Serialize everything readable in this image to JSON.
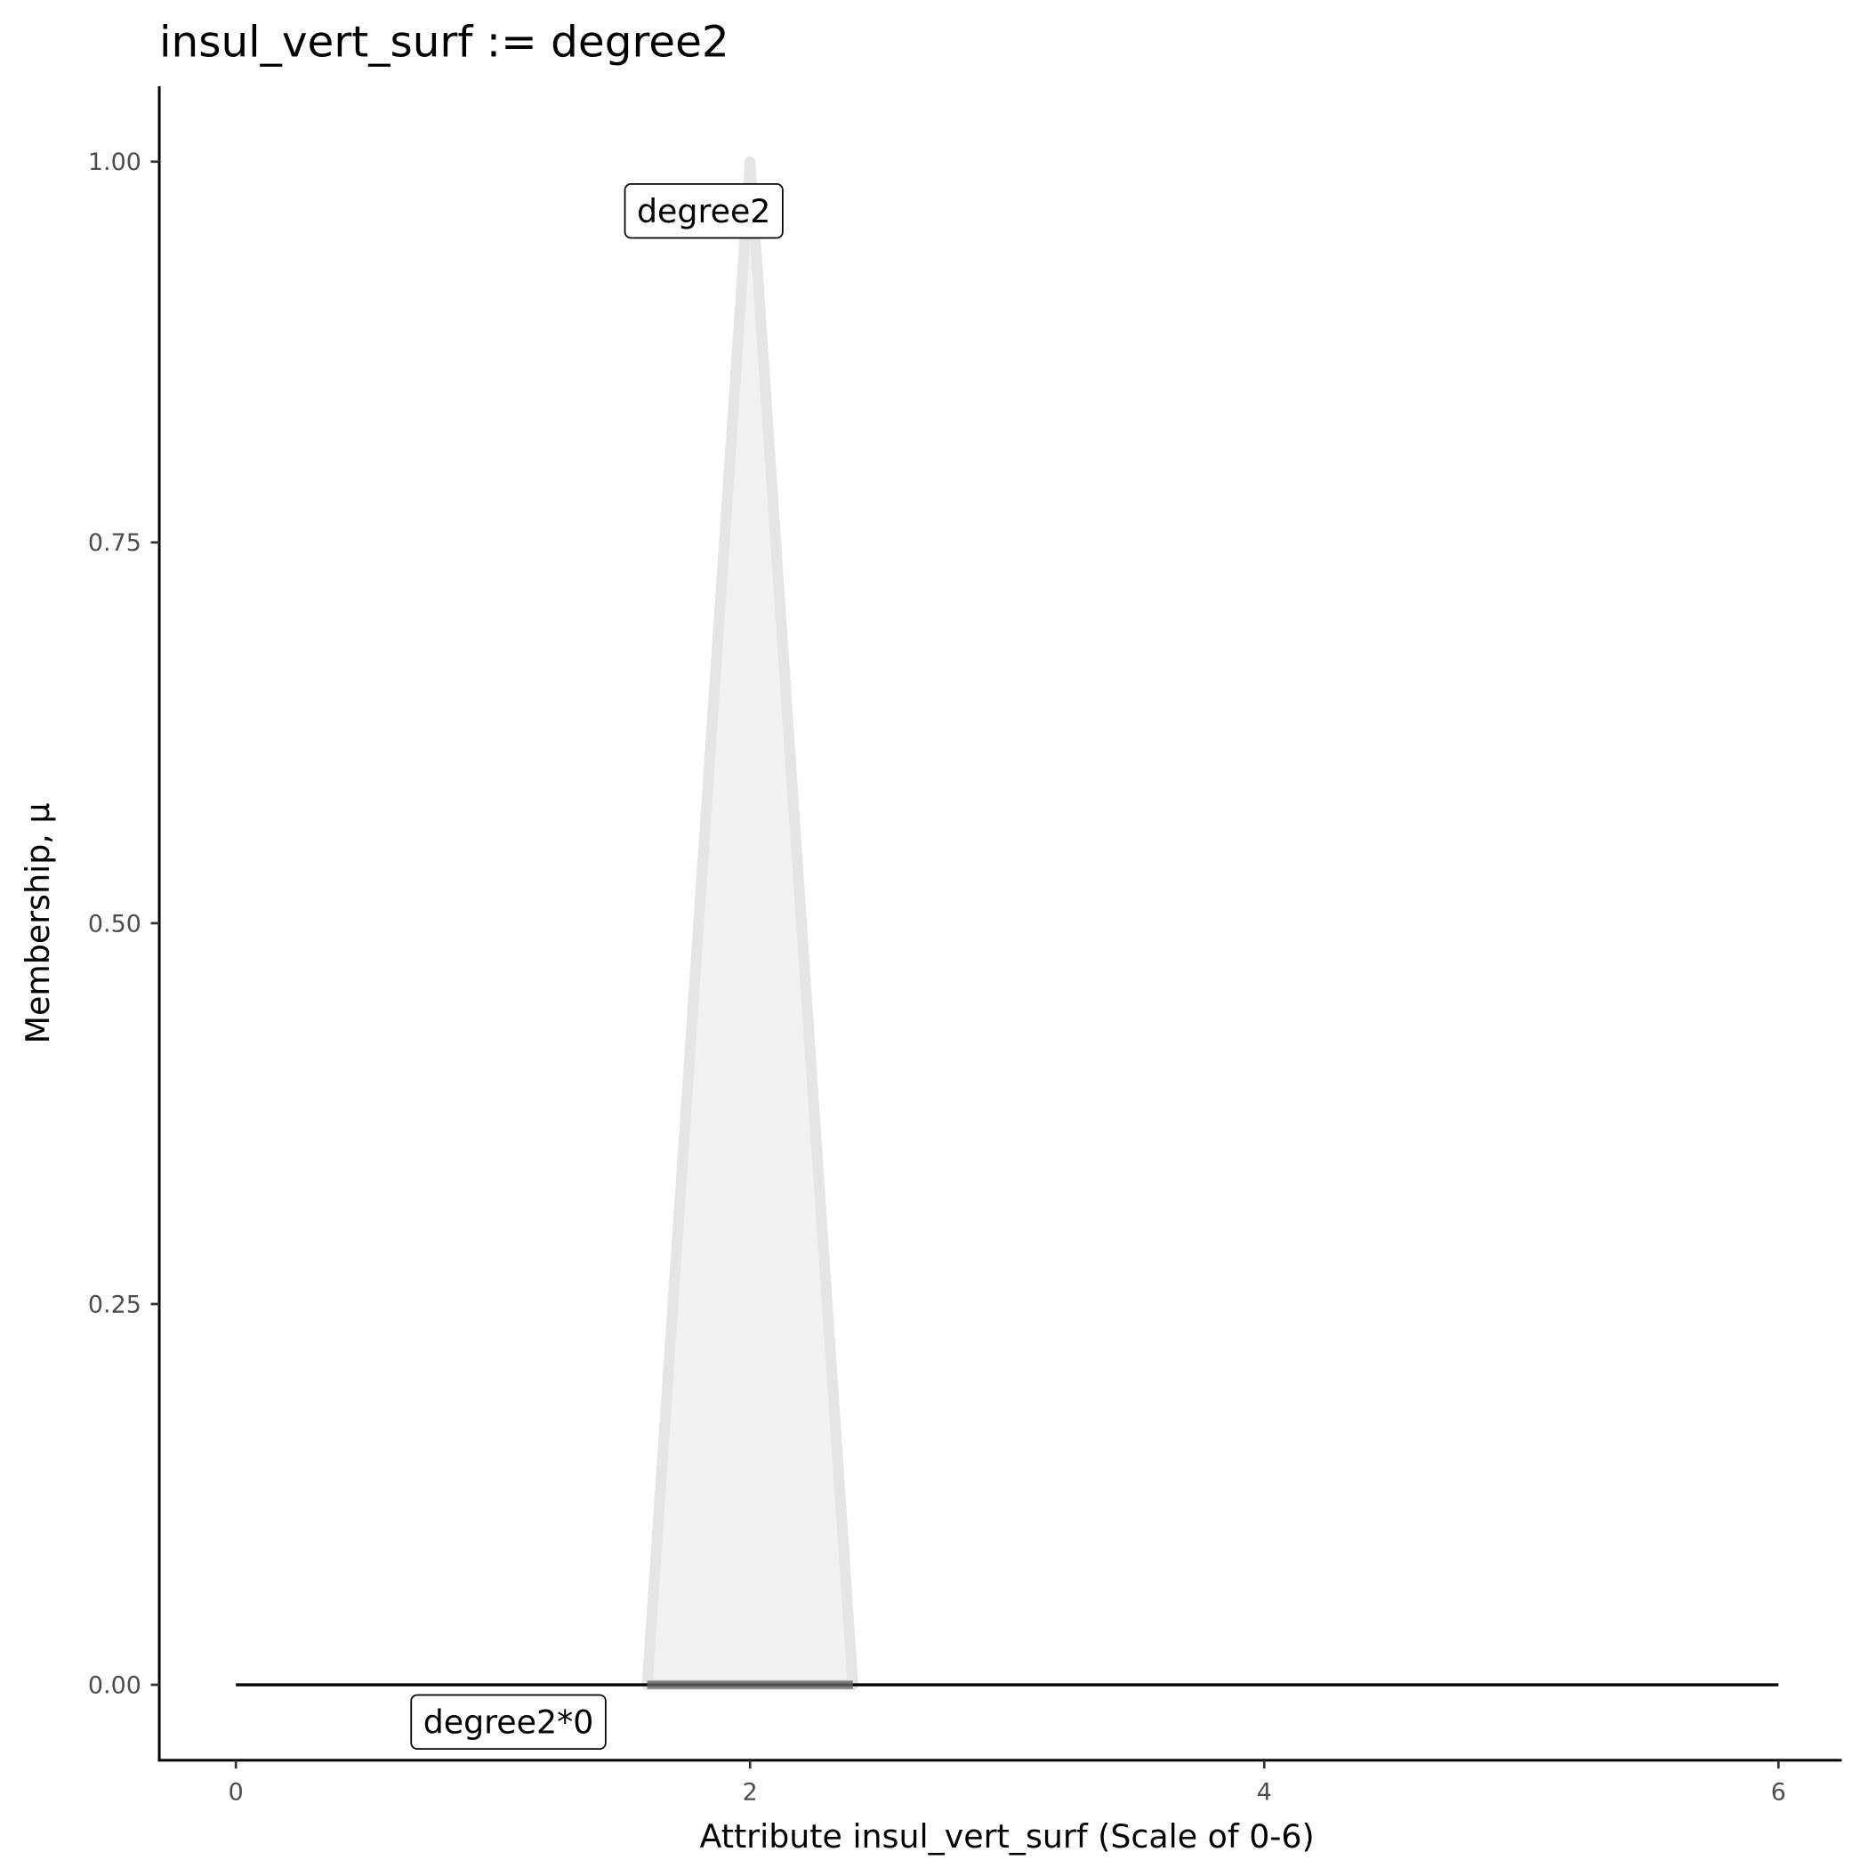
{
  "chart_data": {
    "type": "area",
    "title": "insul_vert_surf := degree2",
    "xlabel": "Attribute insul_vert_surf (Scale of 0-6)",
    "ylabel": "Membership, μ",
    "xlim": [
      -0.3,
      6.25
    ],
    "ylim": [
      -0.05,
      1.05
    ],
    "xticks": [
      "0",
      "2",
      "4",
      "6"
    ],
    "xtick_values": [
      0,
      2,
      4,
      6
    ],
    "yticks": [
      "0.00",
      "0.25",
      "0.50",
      "0.75",
      "1.00"
    ],
    "ytick_values": [
      0,
      0.25,
      0.5,
      0.75,
      1
    ],
    "grid": false,
    "series": [
      {
        "name": "degree2",
        "x": [
          1.6,
          2,
          2.4
        ],
        "y": [
          0,
          1,
          0
        ],
        "fill": "#f2f2f2",
        "stroke": "#e5e5e5"
      },
      {
        "name": "degree2*0",
        "x": [
          0,
          6
        ],
        "y": [
          0,
          0
        ],
        "stroke": "#000000"
      },
      {
        "name": "degree2*0 support",
        "x": [
          1.6,
          2.4
        ],
        "y": [
          0,
          0
        ],
        "stroke": "#666666"
      }
    ],
    "annotations": [
      {
        "text": "degree2",
        "x": 1.82,
        "y": 0.968
      },
      {
        "text": "degree2*0",
        "x": 1.06,
        "y": -0.024
      }
    ]
  }
}
